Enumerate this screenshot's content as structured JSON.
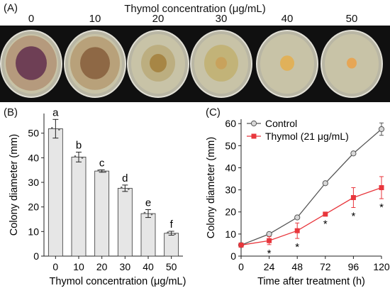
{
  "panels": {
    "a_label": "(A)",
    "b_label": "(B)",
    "c_label": "(C)"
  },
  "photo": {
    "title": "Thymol concentration  (μg/mL)",
    "concentrations": [
      "0",
      "10",
      "20",
      "30",
      "40",
      "50"
    ],
    "plate_colors": {
      "dish": "#b9b6a4",
      "agar": "#c8c3a7",
      "colony_outer": [
        "#b59a7d",
        "#b8a17a",
        "#bcae80",
        "#c2b378",
        "#c9bd85",
        "#c8c192"
      ],
      "colony_inner": [
        "#6e3f55",
        "#8e6845",
        "#a78645",
        "#c8a25c",
        "#e0b15a",
        "#e6a656"
      ]
    }
  },
  "chart_data": [
    {
      "type": "bar",
      "categories": [
        "0",
        "10",
        "20",
        "30",
        "40",
        "50"
      ],
      "values": [
        51.8,
        40.3,
        34.6,
        27.6,
        17.3,
        9.3
      ],
      "errors": [
        3.8,
        2.0,
        0.5,
        1.3,
        1.6,
        0.8
      ],
      "letters": [
        "a",
        "b",
        "c",
        "d",
        "e",
        "f"
      ],
      "xlabel": "Thymol concentration  (μg/mL)",
      "ylabel": "Colony diameter (mm)",
      "ylim": [
        0,
        58
      ],
      "yticks": [
        0,
        10,
        20,
        30,
        40,
        50
      ],
      "bar_color": "#e6e6e6"
    },
    {
      "type": "line",
      "x": [
        0,
        24,
        48,
        72,
        96,
        120
      ],
      "series": [
        {
          "name": "Control",
          "values": [
            5.0,
            10.0,
            17.5,
            33.0,
            46.5,
            57.5
          ],
          "errors": [
            0,
            0,
            0,
            0,
            0,
            2.8
          ],
          "color": "#555555",
          "marker": "circle"
        },
        {
          "name": "Thymol (21 μg/mL)",
          "values": [
            5.0,
            7.0,
            11.5,
            19.0,
            26.5,
            31.0
          ],
          "errors": [
            0,
            1.8,
            3.5,
            0.5,
            4.5,
            5.0
          ],
          "color": "#e8363c",
          "marker": "square"
        }
      ],
      "significance": [
        24,
        48,
        72,
        96,
        120
      ],
      "significance_symbol": "*",
      "xlabel": "Time after treatment (h)",
      "ylabel": "Colony diameter (mm)",
      "xlim": [
        0,
        120
      ],
      "ylim": [
        0,
        62
      ],
      "xticks": [
        0,
        24,
        48,
        72,
        96,
        120
      ],
      "yticks": [
        0,
        10,
        20,
        30,
        40,
        50,
        60
      ],
      "legend": "top-left"
    }
  ]
}
